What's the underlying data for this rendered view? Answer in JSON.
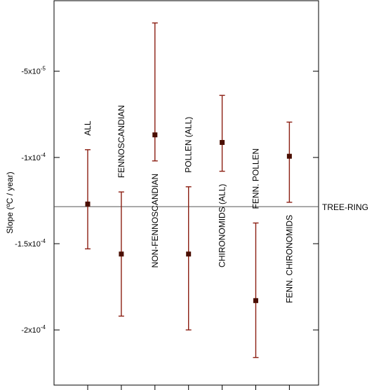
{
  "chart_data": {
    "type": "scatter",
    "ylabel": "Slope (ºC / year)",
    "ylim": [
      -0.000232,
      -9.1e-06
    ],
    "y_ticks": [
      {
        "value": -5e-05,
        "label": "-5x10",
        "exp": "-5"
      },
      {
        "value": -0.0001,
        "label": "-1x10",
        "exp": "-4"
      },
      {
        "value": -0.00015,
        "label": "-1.5x10",
        "exp": "-4"
      },
      {
        "value": -0.0002,
        "label": "-2x10",
        "exp": "-4"
      }
    ],
    "series": [
      {
        "points": [
          {
            "label": "ALL",
            "label_pos": "above",
            "y": -0.000127,
            "err_low": -0.000153,
            "err_high": -9.55e-05
          },
          {
            "label": "FENNOSCANDIAN",
            "label_pos": "above",
            "y": -0.000156,
            "err_low": -0.000192,
            "err_high": -0.00012
          },
          {
            "label": "NON-FENNOSCANDIAN",
            "label_pos": "below",
            "y": -8.69e-05,
            "err_low": -0.000102,
            "err_high": -2.2e-05
          },
          {
            "label": "POLLEN (ALL)",
            "label_pos": "above",
            "y": -0.000156,
            "err_low": -0.0002,
            "err_high": -0.000117
          },
          {
            "label": "CHIRONOMIDS (ALL)",
            "label_pos": "below",
            "y": -9.13e-05,
            "err_low": -0.000108,
            "err_high": -6.4e-05
          },
          {
            "label": "FENN. POLLEN",
            "label_pos": "above",
            "y": -0.000183,
            "err_low": -0.000216,
            "err_high": -0.000138
          },
          {
            "label": "FENN. CHIRONOMIDS",
            "label_pos": "below",
            "y": -9.93e-05,
            "err_low": -0.000126,
            "err_high": -7.95e-05
          }
        ]
      }
    ],
    "reference_line": {
      "label": "TREE-RING",
      "y": -0.0001285
    },
    "colors": {
      "marker": "#4a0e00",
      "errorbar": "#8b1e12",
      "refline": "#555555"
    }
  }
}
